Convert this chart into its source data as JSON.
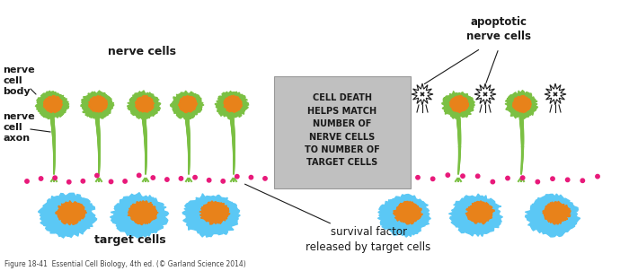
{
  "bg_color": "#ffffff",
  "green_color": "#7bc043",
  "orange_color": "#e8821a",
  "blue_color": "#5bc8f5",
  "pink_color": "#e8197a",
  "gray_box_color": "#c0c0c0",
  "black": "#1a1a1a",
  "white": "#ffffff",
  "box_text": "CELL DEATH\nHELPS MATCH\nNUMBER OF\nNERVE CELLS\nTO NUMBER OF\nTARGET CELLS",
  "label_nerve_cells": "nerve cells",
  "label_apoptotic": "apoptotic\nnerve cells",
  "label_nerve_body": "nerve\ncell\nbody",
  "label_nerve_axon": "nerve\ncell\naxon",
  "label_target_cells": "target cells",
  "label_survival": "survival factor\nreleased by target cells",
  "caption": "Figure 18-41  Essential Cell Biology, 4th ed. (© Garland Science 2014)"
}
